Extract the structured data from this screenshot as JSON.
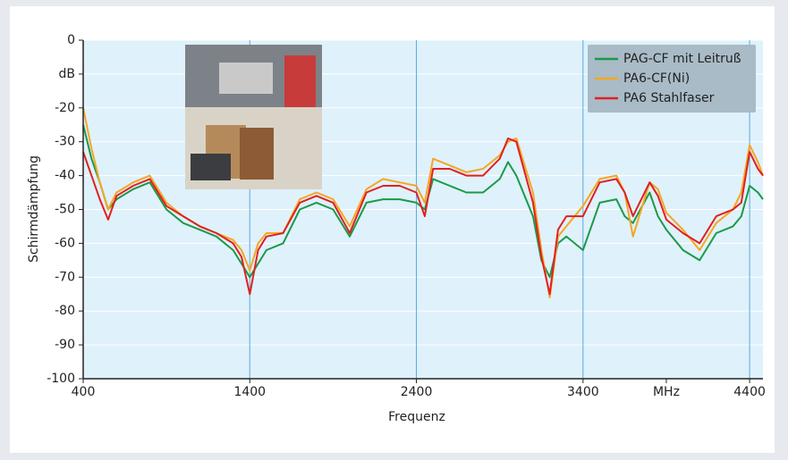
{
  "chart_data": {
    "type": "line",
    "x_label": "Frequenz",
    "y_label": "Schirmdämpfung",
    "xlim": [
      400,
      4480
    ],
    "ylim": [
      -100,
      0
    ],
    "xticks": [
      400,
      1400,
      2400,
      3400,
      {
        "value": 3900,
        "label": "MHz"
      },
      4400
    ],
    "yticks": [
      0,
      {
        "value": -10,
        "label": "dB"
      },
      -20,
      -30,
      -40,
      -50,
      -60,
      -70,
      -80,
      -90,
      -100
    ],
    "grid": true,
    "legend": "upper right",
    "x": [
      400,
      450,
      500,
      550,
      600,
      700,
      800,
      900,
      1000,
      1100,
      1200,
      1300,
      1350,
      1400,
      1450,
      1500,
      1600,
      1700,
      1800,
      1900,
      2000,
      2100,
      2200,
      2300,
      2400,
      2450,
      2500,
      2600,
      2700,
      2800,
      2900,
      2950,
      3000,
      3100,
      3150,
      3200,
      3250,
      3300,
      3400,
      3500,
      3600,
      3650,
      3700,
      3800,
      3850,
      3900,
      4000,
      4100,
      4200,
      4300,
      4350,
      4400,
      4450,
      4480
    ],
    "series": [
      {
        "name": "PAG-CF mit Leitruß",
        "color": "#1a9a48",
        "values": [
          -25,
          -35,
          -42,
          -50,
          -47,
          -44,
          -42,
          -50,
          -54,
          -56,
          -58,
          -62,
          -66,
          -70,
          -66,
          -62,
          -60,
          -50,
          -48,
          -50,
          -58,
          -48,
          -47,
          -47,
          -48,
          -50,
          -41,
          -43,
          -45,
          -45,
          -41,
          -36,
          -40,
          -52,
          -65,
          -70,
          -60,
          -58,
          -62,
          -48,
          -47,
          -52,
          -54,
          -45,
          -52,
          -56,
          -62,
          -65,
          -57,
          -55,
          -52,
          -43,
          -45,
          -47
        ]
      },
      {
        "name": "PA6-CF(Ni)",
        "color": "#f5a623",
        "values": [
          -20,
          -32,
          -42,
          -50,
          -45,
          -42,
          -40,
          -48,
          -52,
          -55,
          -57,
          -59,
          -62,
          -68,
          -60,
          -57,
          -57,
          -47,
          -45,
          -47,
          -55,
          -44,
          -41,
          -42,
          -43,
          -48,
          -35,
          -37,
          -39,
          -38,
          -34,
          -30,
          -29,
          -45,
          -62,
          -76,
          -58,
          -55,
          -49,
          -41,
          -40,
          -45,
          -58,
          -42,
          -44,
          -51,
          -56,
          -62,
          -54,
          -50,
          -45,
          -31,
          -36,
          -40
        ]
      },
      {
        "name": "PA6 Stahlfaser",
        "color": "#e02020",
        "values": [
          -33,
          -40,
          -47,
          -53,
          -46,
          -43,
          -41,
          -49,
          -52,
          -55,
          -57,
          -60,
          -64,
          -75,
          -62,
          -58,
          -57,
          -48,
          -46,
          -48,
          -57,
          -45,
          -43,
          -43,
          -45,
          -52,
          -38,
          -38,
          -40,
          -40,
          -35,
          -29,
          -30,
          -48,
          -64,
          -75,
          -56,
          -52,
          -52,
          -42,
          -41,
          -45,
          -52,
          -42,
          -46,
          -53,
          -57,
          -60,
          -52,
          -50,
          -48,
          -33,
          -38,
          -40
        ]
      }
    ]
  }
}
